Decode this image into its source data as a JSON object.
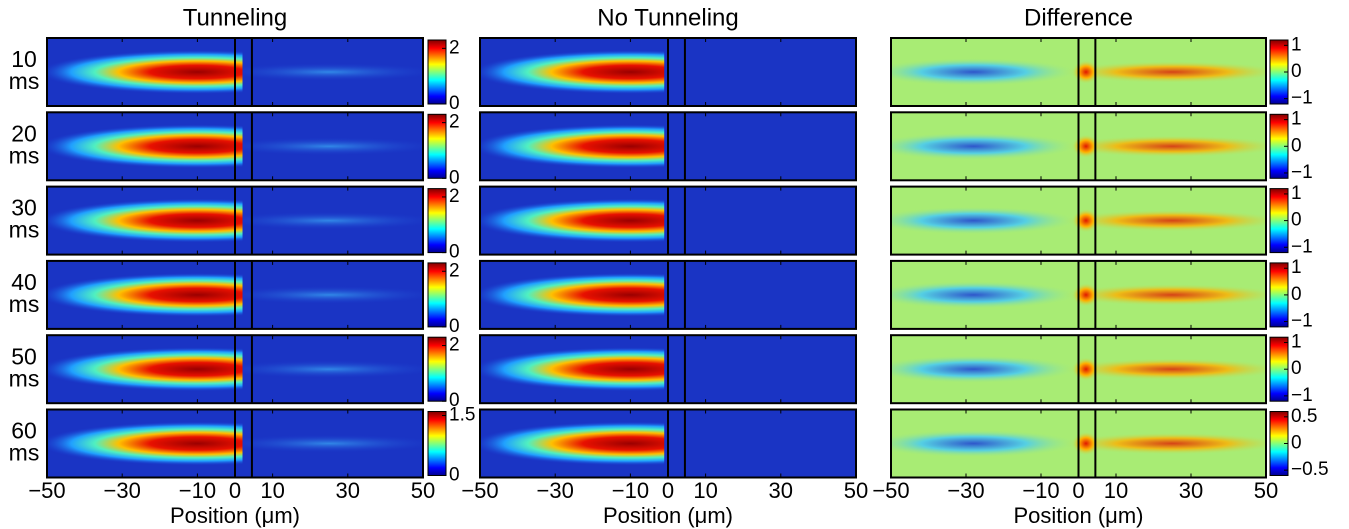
{
  "chart_data": {
    "type": "heatmap",
    "columns": [
      "Tunneling",
      "No Tunneling",
      "Difference"
    ],
    "xlabel": "Position (μm)",
    "xlim": [
      -50,
      50
    ],
    "xticks": [
      {
        "value": -50,
        "label": "−50"
      },
      {
        "value": -30,
        "label": "−30"
      },
      {
        "value": -10,
        "label": "−10"
      },
      0,
      10,
      30,
      50
    ],
    "barrier": [
      0,
      4.5
    ],
    "rows": [
      {
        "label": "10",
        "unit": "ms",
        "tunneling_colorbar": {
          "clim": [
            0,
            2.3
          ],
          "cticks": [
            0,
            2
          ]
        },
        "difference_colorbar": {
          "clim": [
            -1.2,
            1.2
          ],
          "cticks": [
            {
              "value": -1,
              "label": "−1"
            },
            0,
            1
          ]
        }
      },
      {
        "label": "20",
        "unit": "ms",
        "tunneling_colorbar": {
          "clim": [
            0,
            2.3
          ],
          "cticks": [
            0,
            2
          ]
        },
        "difference_colorbar": {
          "clim": [
            -1.2,
            1.2
          ],
          "cticks": [
            {
              "value": -1,
              "label": "−1"
            },
            0,
            1
          ]
        }
      },
      {
        "label": "30",
        "unit": "ms",
        "tunneling_colorbar": {
          "clim": [
            0,
            2.3
          ],
          "cticks": [
            0,
            2
          ]
        },
        "difference_colorbar": {
          "clim": [
            -1.2,
            1.2
          ],
          "cticks": [
            {
              "value": -1,
              "label": "−1"
            },
            0,
            1
          ]
        }
      },
      {
        "label": "40",
        "unit": "ms",
        "tunneling_colorbar": {
          "clim": [
            0,
            2.3
          ],
          "cticks": [
            0,
            2
          ]
        },
        "difference_colorbar": {
          "clim": [
            -1.2,
            1.2
          ],
          "cticks": [
            {
              "value": -1,
              "label": "−1"
            },
            0,
            1
          ]
        }
      },
      {
        "label": "50",
        "unit": "ms",
        "tunneling_colorbar": {
          "clim": [
            0,
            2.3
          ],
          "cticks": [
            0,
            2
          ]
        },
        "difference_colorbar": {
          "clim": [
            -1.2,
            1.2
          ],
          "cticks": [
            {
              "value": -1,
              "label": "−1"
            },
            0,
            1
          ]
        }
      },
      {
        "label": "60",
        "unit": "ms",
        "tunneling_colorbar": {
          "clim": [
            0,
            1.6
          ],
          "cticks": [
            0,
            1.5
          ]
        },
        "difference_colorbar": {
          "clim": [
            -0.6,
            0.6
          ],
          "cticks": [
            {
              "value": -0.5,
              "label": "−0.5"
            },
            0,
            0.5
          ]
        }
      }
    ]
  }
}
